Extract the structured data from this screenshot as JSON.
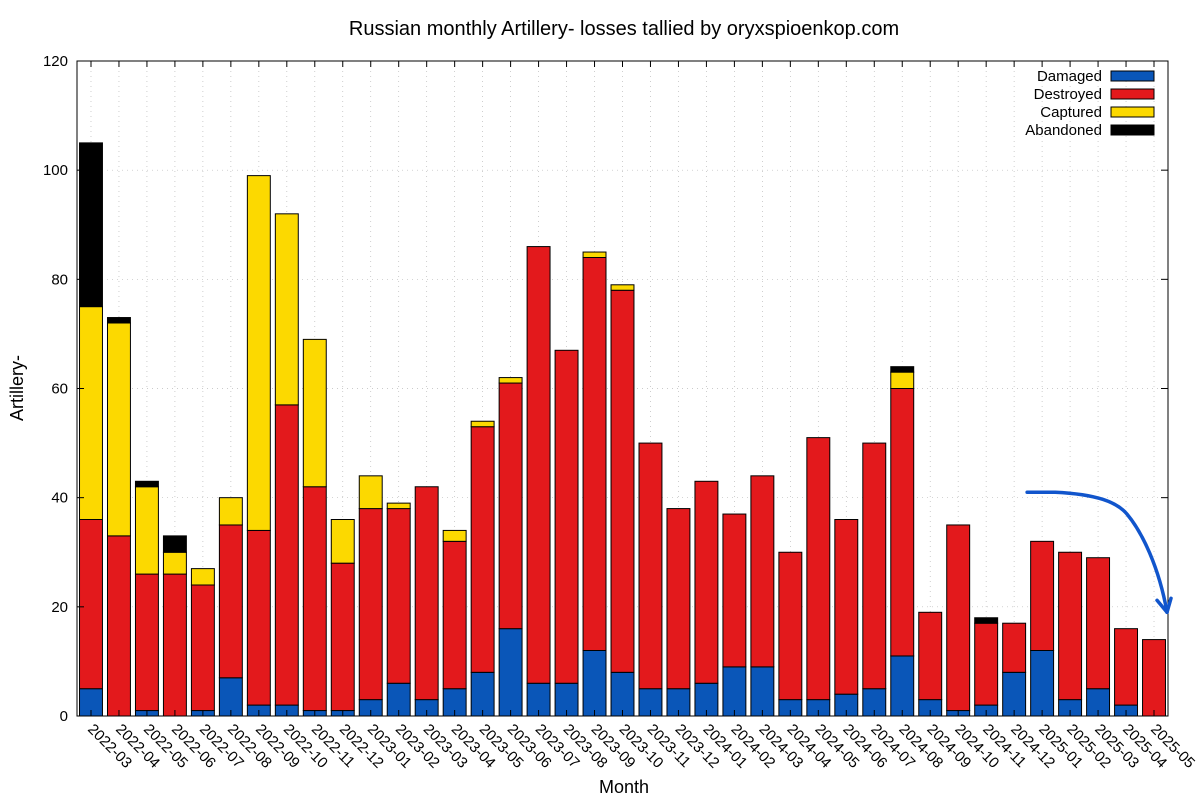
{
  "chart_data": {
    "type": "bar",
    "stacked": true,
    "title": "Russian monthly Artillery- losses tallied by oryxspioenkop.com",
    "xlabel": "Month",
    "ylabel": "Artillery-",
    "ylim": [
      0,
      120
    ],
    "yticks": [
      0,
      20,
      40,
      60,
      80,
      100,
      120
    ],
    "grid": true,
    "legend_position": "top-right",
    "categories": [
      "2022-03",
      "2022-04",
      "2022-05",
      "2022-06",
      "2022-07",
      "2022-08",
      "2022-09",
      "2022-10",
      "2022-11",
      "2022-12",
      "2023-01",
      "2023-02",
      "2023-03",
      "2023-04",
      "2023-05",
      "2023-06",
      "2023-07",
      "2023-08",
      "2023-09",
      "2023-10",
      "2023-11",
      "2023-12",
      "2024-01",
      "2024-02",
      "2024-03",
      "2024-04",
      "2024-05",
      "2024-06",
      "2024-07",
      "2024-08",
      "2024-09",
      "2024-10",
      "2024-11",
      "2024-12",
      "2025-01",
      "2025-02",
      "2025-03",
      "2025-04",
      "2025-05"
    ],
    "series": [
      {
        "name": "Damaged",
        "color": "#0a56b8",
        "values": [
          5,
          0,
          1,
          0,
          1,
          7,
          2,
          2,
          1,
          1,
          3,
          6,
          3,
          5,
          8,
          16,
          6,
          6,
          12,
          8,
          5,
          5,
          6,
          9,
          9,
          3,
          3,
          4,
          5,
          11,
          3,
          1,
          2,
          8,
          12,
          3,
          5,
          2,
          0
        ]
      },
      {
        "name": "Destroyed",
        "color": "#e3191c",
        "values": [
          31,
          33,
          25,
          26,
          23,
          28,
          32,
          55,
          41,
          27,
          35,
          32,
          39,
          27,
          45,
          45,
          80,
          61,
          72,
          70,
          45,
          33,
          37,
          28,
          35,
          27,
          48,
          32,
          45,
          49,
          16,
          34,
          15,
          9,
          20,
          27,
          24,
          14,
          14
        ]
      },
      {
        "name": "Captured",
        "color": "#fcd900",
        "values": [
          39,
          39,
          16,
          4,
          3,
          5,
          65,
          35,
          27,
          8,
          6,
          1,
          0,
          2,
          1,
          1,
          0,
          0,
          1,
          1,
          0,
          0,
          0,
          0,
          0,
          0,
          0,
          0,
          0,
          3,
          0,
          0,
          0,
          0,
          0,
          0,
          0,
          0,
          0
        ]
      },
      {
        "name": "Abandoned",
        "color": "#000000",
        "values": [
          30,
          1,
          1,
          3,
          0,
          0,
          0,
          0,
          0,
          0,
          0,
          0,
          0,
          0,
          0,
          0,
          0,
          0,
          0,
          0,
          0,
          0,
          0,
          0,
          0,
          0,
          0,
          0,
          0,
          1,
          0,
          0,
          1,
          0,
          0,
          0,
          0,
          0,
          0
        ]
      }
    ],
    "annotation": {
      "type": "arrow",
      "color": "#1155cc",
      "from_value": 41,
      "to_value": 19,
      "from_category": "2025-01",
      "to_category": "2025-05"
    }
  }
}
